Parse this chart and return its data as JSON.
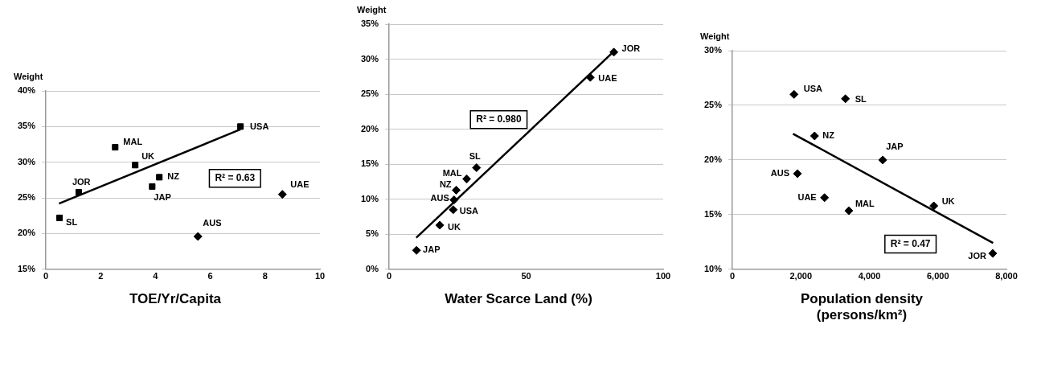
{
  "chart_data": [
    {
      "type": "scatter",
      "ylabel": "Weight",
      "xlabel": "TOE/Yr/Capita",
      "xlim": [
        0,
        10
      ],
      "xticks": [
        0,
        2,
        4,
        6,
        8,
        10
      ],
      "ylim": [
        15,
        40
      ],
      "yticks": [
        {
          "value": 15,
          "label": "15%"
        },
        {
          "value": 20,
          "label": "20%"
        },
        {
          "value": 25,
          "label": "25%"
        },
        {
          "value": 30,
          "label": "30%"
        },
        {
          "value": 35,
          "label": "35%"
        },
        {
          "value": 40,
          "label": "40%"
        }
      ],
      "grid": "y",
      "marker": "square",
      "annotations": [
        "R² = 0.63"
      ],
      "series": [
        {
          "color": "#000000",
          "x": [
            0.5,
            1.2,
            2.53,
            3.26,
            3.88,
            4.14,
            7.1
          ],
          "values": [
            22.2,
            25.8,
            32.1,
            29.6,
            26.6,
            27.9,
            35.0
          ],
          "value_labels": [
            "SL",
            "JOR",
            "MAL",
            "UK",
            "JAP",
            "NZ",
            "USA"
          ]
        },
        {
          "color": "#000000",
          "marker": "diamond",
          "x": [
            5.55,
            8.63
          ],
          "values": [
            19.6,
            25.5
          ],
          "value_labels": [
            "AUS",
            "UAE"
          ]
        },
        {
          "type": "line",
          "color": "#000000",
          "marker": "none",
          "x": [
            0.48,
            7.1
          ],
          "values": [
            24.2,
            34.6
          ]
        }
      ]
    },
    {
      "type": "scatter",
      "ylabel": "Weight",
      "xlabel": "Water Scarce Land (%)",
      "xlim": [
        0,
        100
      ],
      "xticks": [
        0,
        50,
        100
      ],
      "ylim": [
        0,
        35
      ],
      "yticks": [
        {
          "value": 0,
          "label": "0%"
        },
        {
          "value": 5,
          "label": "5%"
        },
        {
          "value": 10,
          "label": "10%"
        },
        {
          "value": 15,
          "label": "15%"
        },
        {
          "value": 20,
          "label": "20%"
        },
        {
          "value": 25,
          "label": "25%"
        },
        {
          "value": 30,
          "label": "30%"
        },
        {
          "value": 35,
          "label": "35%"
        }
      ],
      "grid": "y",
      "marker": "diamond",
      "annotations": [
        "R² = 0.980"
      ],
      "series": [
        {
          "color": "#000000",
          "x": [
            82,
            73.4,
            31.9,
            28.3,
            24.5,
            23.7,
            23.4,
            18.5,
            10
          ],
          "values": [
            31.0,
            27.4,
            14.5,
            12.9,
            11.3,
            9.9,
            8.5,
            6.3,
            2.7
          ],
          "value_labels": [
            "JOR",
            "UAE",
            "SL",
            "MAL",
            "NZ",
            "AUS",
            "USA",
            "UK",
            "JAP"
          ]
        },
        {
          "type": "line",
          "color": "#000000",
          "marker": "none",
          "x": [
            9.9,
            82
          ],
          "values": [
            4.5,
            31.1
          ]
        }
      ]
    },
    {
      "type": "scatter",
      "ylabel": "Weight",
      "xlabel": "Population density (persons/km²)",
      "xlim": [
        0,
        8000
      ],
      "xticks": [
        0,
        {
          "value": 2000,
          "label": "2,000"
        },
        {
          "value": 4000,
          "label": "4,000"
        },
        {
          "value": 6000,
          "label": "6,000"
        },
        {
          "value": 8000,
          "label": "8,000"
        }
      ],
      "ylim": [
        10,
        30
      ],
      "yticks": [
        {
          "value": 10,
          "label": "10%"
        },
        {
          "value": 15,
          "label": "15%"
        },
        {
          "value": 20,
          "label": "20%"
        },
        {
          "value": 25,
          "label": "25%"
        },
        {
          "value": 30,
          "label": "30%"
        }
      ],
      "grid": "y",
      "marker": "diamond",
      "annotations": [
        "R² = 0.47"
      ],
      "series": [
        {
          "color": "#000000",
          "x": [
            1800,
            3300,
            2400,
            4390,
            1900,
            2690,
            3400,
            5880,
            7600
          ],
          "values": [
            26.0,
            25.6,
            22.2,
            20.0,
            18.75,
            16.55,
            15.35,
            15.8,
            11.45
          ],
          "value_labels": [
            "USA",
            "SL",
            "NZ",
            "JAP",
            "AUS",
            "UAE",
            "MAL",
            "UK",
            "JOR"
          ]
        },
        {
          "type": "line",
          "color": "#000000",
          "marker": "none",
          "x": [
            1770,
            7610
          ],
          "values": [
            22.4,
            12.4
          ]
        }
      ]
    }
  ]
}
